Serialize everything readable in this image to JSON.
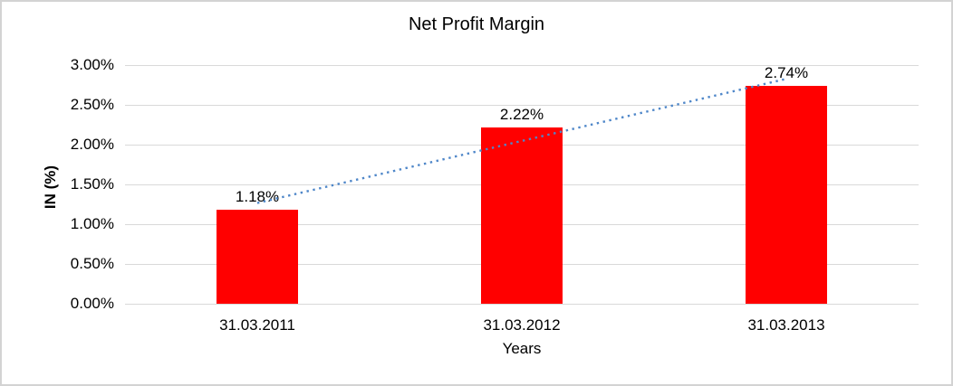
{
  "frame": {
    "background": "#ffffff",
    "border_color": "#d3d3d3"
  },
  "chart_data": {
    "type": "bar",
    "title": "Net Profit Margin",
    "categories": [
      "31.03.2011",
      "31.03.2012",
      "31.03.2013"
    ],
    "values": [
      1.18,
      2.22,
      2.74
    ],
    "data_labels": [
      "1.18%",
      "2.22%",
      "2.74%"
    ],
    "xlabel": "Years",
    "ylabel": "IN (%)",
    "ylim": [
      0,
      3
    ],
    "ytick_step": 0.5,
    "ytick_labels": [
      "0.00%",
      "0.50%",
      "1.00%",
      "1.50%",
      "2.00%",
      "2.50%",
      "3.00%"
    ],
    "grid": true,
    "legend": "none",
    "bar_color": "#ff0000",
    "gridline_color": "#d9d9d9",
    "text_color": "#000000",
    "trendline": {
      "type": "linear",
      "style": "dotted",
      "color": "#4f87c9"
    }
  }
}
